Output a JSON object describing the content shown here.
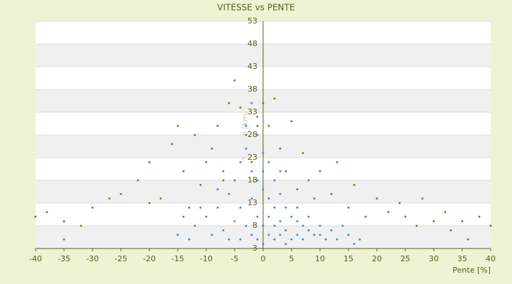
{
  "chart_data": {
    "type": "scatter",
    "title": "VITESSE vs PENTE",
    "x_label": "Pente [%]",
    "y_label": "Vitesse [km/h]",
    "xlim": [
      -40,
      40
    ],
    "xticks": [
      -40,
      -35,
      -30,
      -25,
      -20,
      -15,
      -10,
      -5,
      0,
      5,
      10,
      15,
      20,
      25,
      30,
      35,
      40
    ],
    "ylim": [
      3,
      53
    ],
    "yticks": [
      3,
      8,
      13,
      18,
      23,
      28,
      33,
      38,
      43,
      48,
      53
    ],
    "grid": true,
    "series": [
      {
        "color": "#3a86d0",
        "x": [
          -35,
          -15,
          -12,
          -10,
          -8,
          -7,
          -6,
          -5,
          -5,
          -4,
          -4,
          -3,
          -3,
          -3,
          -2,
          -2,
          -2,
          -1,
          -1,
          -1,
          -1,
          0,
          0,
          0,
          0,
          1,
          1,
          1,
          1,
          2,
          2,
          2,
          3,
          3,
          3,
          4,
          4,
          5,
          5,
          6,
          6,
          7,
          7,
          8,
          9,
          10,
          11,
          12,
          13,
          15,
          17,
          -9,
          -11,
          -13,
          -6,
          -4,
          2,
          4,
          -2,
          -1,
          0,
          3,
          -7,
          -8,
          -14,
          6,
          8,
          10,
          14,
          16
        ],
        "values": [
          5,
          6,
          8,
          10,
          12,
          7,
          15,
          18,
          9,
          22,
          12,
          25,
          8,
          30,
          20,
          14,
          6,
          28,
          18,
          10,
          5,
          24,
          16,
          8,
          4,
          22,
          14,
          6,
          10,
          18,
          12,
          5,
          15,
          9,
          6,
          12,
          7,
          10,
          5,
          9,
          6,
          8,
          5,
          7,
          6,
          8,
          5,
          7,
          5,
          6,
          5,
          6,
          12,
          5,
          5,
          5,
          8,
          4,
          35,
          32,
          20,
          20,
          20,
          16,
          10,
          12,
          10,
          6,
          8,
          4
        ]
      },
      {
        "color": "#7a7a10",
        "x": [
          -40,
          -38,
          -35,
          -32,
          -30,
          -27,
          -25,
          -22,
          -20,
          -20,
          -18,
          -16,
          -15,
          -14,
          -13,
          -12,
          -11,
          -10,
          -9,
          -8,
          -7,
          -6,
          -5,
          -4,
          -3,
          -2,
          -1,
          0,
          1,
          2,
          3,
          4,
          5,
          6,
          7,
          8,
          9,
          10,
          12,
          13,
          15,
          16,
          18,
          20,
          22,
          24,
          25,
          27,
          28,
          30,
          32,
          33,
          35,
          36,
          38,
          40
        ],
        "values": [
          10,
          11,
          9,
          8,
          12,
          14,
          15,
          18,
          22,
          13,
          14,
          26,
          30,
          20,
          12,
          28,
          17,
          22,
          25,
          30,
          18,
          35,
          40,
          34,
          28,
          22,
          30,
          35,
          30,
          36,
          25,
          20,
          31,
          16,
          24,
          18,
          14,
          20,
          15,
          22,
          12,
          17,
          10,
          14,
          11,
          13,
          10,
          8,
          14,
          9,
          11,
          7,
          9,
          5,
          10,
          8
        ]
      }
    ]
  }
}
